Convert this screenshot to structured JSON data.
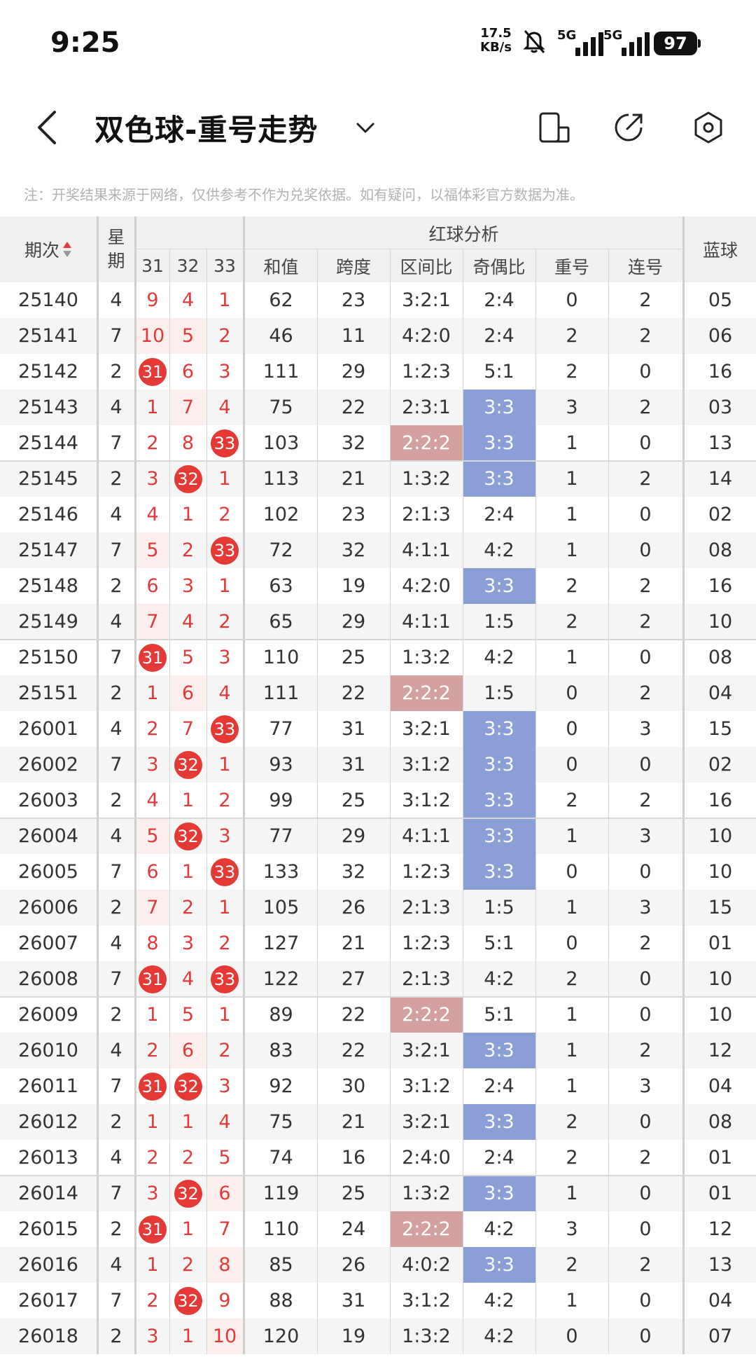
{
  "status": {
    "time": "9:25",
    "net_speed_value": "17.5",
    "net_speed_unit": "KB/s",
    "signal1": "5G",
    "signal2": "5G",
    "battery": "97"
  },
  "header": {
    "title": "双色球-重号走势"
  },
  "note": "注：开奖结果来源于网络，仅供参考不作为兑奖依据。如有疑问，以福体彩官方数据为准。",
  "columns": {
    "issue": "期次",
    "week": "星期",
    "n31": "31",
    "n32": "32",
    "n33": "33",
    "red_analysis": "红球分析",
    "sum": "和值",
    "span": "跨度",
    "zone_ratio": "区间比",
    "odd_even": "奇偶比",
    "repeat": "重号",
    "consec": "连号",
    "blue": "蓝球"
  },
  "rows": [
    {
      "issue": "25140",
      "week": "4",
      "c31": "9",
      "c32": "4",
      "c33": "1",
      "sum": "62",
      "span": "23",
      "zone": "3:2:1",
      "oe": "2:4",
      "rep": "0",
      "con": "2",
      "blue": "05"
    },
    {
      "issue": "25141",
      "week": "7",
      "c31": "10",
      "c32": "5",
      "c33": "2",
      "sum": "46",
      "span": "11",
      "zone": "4:2:0",
      "oe": "2:4",
      "rep": "2",
      "con": "2",
      "blue": "06"
    },
    {
      "issue": "25142",
      "week": "2",
      "c31": "31",
      "c32": "6",
      "c33": "3",
      "sum": "111",
      "span": "29",
      "zone": "1:2:3",
      "oe": "5:1",
      "rep": "2",
      "con": "0",
      "blue": "16"
    },
    {
      "issue": "25143",
      "week": "4",
      "c31": "1",
      "c32": "7",
      "c33": "4",
      "sum": "75",
      "span": "22",
      "zone": "2:3:1",
      "oe": "3:3",
      "rep": "3",
      "con": "2",
      "blue": "03"
    },
    {
      "issue": "25144",
      "week": "7",
      "c31": "2",
      "c32": "8",
      "c33": "33",
      "sum": "103",
      "span": "32",
      "zone": "2:2:2",
      "oe": "3:3",
      "rep": "1",
      "con": "0",
      "blue": "13"
    },
    {
      "issue": "25145",
      "week": "2",
      "c31": "3",
      "c32": "32",
      "c33": "1",
      "sum": "113",
      "span": "21",
      "zone": "1:3:2",
      "oe": "3:3",
      "rep": "1",
      "con": "2",
      "blue": "14"
    },
    {
      "issue": "25146",
      "week": "4",
      "c31": "4",
      "c32": "1",
      "c33": "2",
      "sum": "102",
      "span": "23",
      "zone": "2:1:3",
      "oe": "2:4",
      "rep": "1",
      "con": "0",
      "blue": "02"
    },
    {
      "issue": "25147",
      "week": "7",
      "c31": "5",
      "c32": "2",
      "c33": "33",
      "sum": "72",
      "span": "32",
      "zone": "4:1:1",
      "oe": "4:2",
      "rep": "1",
      "con": "0",
      "blue": "08"
    },
    {
      "issue": "25148",
      "week": "2",
      "c31": "6",
      "c32": "3",
      "c33": "1",
      "sum": "63",
      "span": "19",
      "zone": "4:2:0",
      "oe": "3:3",
      "rep": "2",
      "con": "2",
      "blue": "16"
    },
    {
      "issue": "25149",
      "week": "4",
      "c31": "7",
      "c32": "4",
      "c33": "2",
      "sum": "65",
      "span": "29",
      "zone": "4:1:1",
      "oe": "1:5",
      "rep": "2",
      "con": "2",
      "blue": "10"
    },
    {
      "issue": "25150",
      "week": "7",
      "c31": "31",
      "c32": "5",
      "c33": "3",
      "sum": "110",
      "span": "25",
      "zone": "1:3:2",
      "oe": "4:2",
      "rep": "1",
      "con": "0",
      "blue": "08"
    },
    {
      "issue": "25151",
      "week": "2",
      "c31": "1",
      "c32": "6",
      "c33": "4",
      "sum": "111",
      "span": "22",
      "zone": "2:2:2",
      "oe": "1:5",
      "rep": "0",
      "con": "2",
      "blue": "04"
    },
    {
      "issue": "26001",
      "week": "4",
      "c31": "2",
      "c32": "7",
      "c33": "33",
      "sum": "77",
      "span": "31",
      "zone": "3:2:1",
      "oe": "3:3",
      "rep": "0",
      "con": "3",
      "blue": "15"
    },
    {
      "issue": "26002",
      "week": "7",
      "c31": "3",
      "c32": "32",
      "c33": "1",
      "sum": "93",
      "span": "31",
      "zone": "3:1:2",
      "oe": "3:3",
      "rep": "0",
      "con": "0",
      "blue": "02"
    },
    {
      "issue": "26003",
      "week": "2",
      "c31": "4",
      "c32": "1",
      "c33": "2",
      "sum": "99",
      "span": "25",
      "zone": "3:1:2",
      "oe": "3:3",
      "rep": "2",
      "con": "2",
      "blue": "16"
    },
    {
      "issue": "26004",
      "week": "4",
      "c31": "5",
      "c32": "32",
      "c33": "3",
      "sum": "77",
      "span": "29",
      "zone": "4:1:1",
      "oe": "3:3",
      "rep": "1",
      "con": "3",
      "blue": "10"
    },
    {
      "issue": "26005",
      "week": "7",
      "c31": "6",
      "c32": "1",
      "c33": "33",
      "sum": "133",
      "span": "32",
      "zone": "1:2:3",
      "oe": "3:3",
      "rep": "0",
      "con": "0",
      "blue": "10"
    },
    {
      "issue": "26006",
      "week": "2",
      "c31": "7",
      "c32": "2",
      "c33": "1",
      "sum": "105",
      "span": "26",
      "zone": "2:1:3",
      "oe": "1:5",
      "rep": "1",
      "con": "3",
      "blue": "15"
    },
    {
      "issue": "26007",
      "week": "4",
      "c31": "8",
      "c32": "3",
      "c33": "2",
      "sum": "127",
      "span": "21",
      "zone": "1:2:3",
      "oe": "5:1",
      "rep": "0",
      "con": "2",
      "blue": "01"
    },
    {
      "issue": "26008",
      "week": "7",
      "c31": "31",
      "c32": "4",
      "c33": "33",
      "sum": "122",
      "span": "27",
      "zone": "2:1:3",
      "oe": "4:2",
      "rep": "2",
      "con": "0",
      "blue": "10"
    },
    {
      "issue": "26009",
      "week": "2",
      "c31": "1",
      "c32": "5",
      "c33": "1",
      "sum": "89",
      "span": "22",
      "zone": "2:2:2",
      "oe": "5:1",
      "rep": "1",
      "con": "0",
      "blue": "10"
    },
    {
      "issue": "26010",
      "week": "4",
      "c31": "2",
      "c32": "6",
      "c33": "2",
      "sum": "83",
      "span": "22",
      "zone": "3:2:1",
      "oe": "3:3",
      "rep": "1",
      "con": "2",
      "blue": "12"
    },
    {
      "issue": "26011",
      "week": "7",
      "c31": "31",
      "c32": "32",
      "c33": "3",
      "sum": "92",
      "span": "30",
      "zone": "3:1:2",
      "oe": "2:4",
      "rep": "1",
      "con": "3",
      "blue": "04"
    },
    {
      "issue": "26012",
      "week": "2",
      "c31": "1",
      "c32": "1",
      "c33": "4",
      "sum": "75",
      "span": "21",
      "zone": "3:2:1",
      "oe": "3:3",
      "rep": "2",
      "con": "0",
      "blue": "08"
    },
    {
      "issue": "26013",
      "week": "4",
      "c31": "2",
      "c32": "2",
      "c33": "5",
      "sum": "74",
      "span": "16",
      "zone": "2:4:0",
      "oe": "2:4",
      "rep": "2",
      "con": "2",
      "blue": "01"
    },
    {
      "issue": "26014",
      "week": "7",
      "c31": "3",
      "c32": "32",
      "c33": "6",
      "sum": "119",
      "span": "25",
      "zone": "1:3:2",
      "oe": "3:3",
      "rep": "1",
      "con": "0",
      "blue": "01"
    },
    {
      "issue": "26015",
      "week": "2",
      "c31": "31",
      "c32": "1",
      "c33": "7",
      "sum": "110",
      "span": "24",
      "zone": "2:2:2",
      "oe": "4:2",
      "rep": "3",
      "con": "0",
      "blue": "12"
    },
    {
      "issue": "26016",
      "week": "4",
      "c31": "1",
      "c32": "2",
      "c33": "8",
      "sum": "85",
      "span": "26",
      "zone": "4:0:2",
      "oe": "3:3",
      "rep": "2",
      "con": "2",
      "blue": "13"
    },
    {
      "issue": "26017",
      "week": "7",
      "c31": "2",
      "c32": "32",
      "c33": "9",
      "sum": "88",
      "span": "31",
      "zone": "3:1:2",
      "oe": "4:2",
      "rep": "1",
      "con": "0",
      "blue": "04"
    },
    {
      "issue": "26018",
      "week": "2",
      "c31": "3",
      "c32": "1",
      "c33": "10",
      "sum": "120",
      "span": "19",
      "zone": "1:3:2",
      "oe": "4:2",
      "rep": "0",
      "con": "0",
      "blue": "07"
    }
  ]
}
